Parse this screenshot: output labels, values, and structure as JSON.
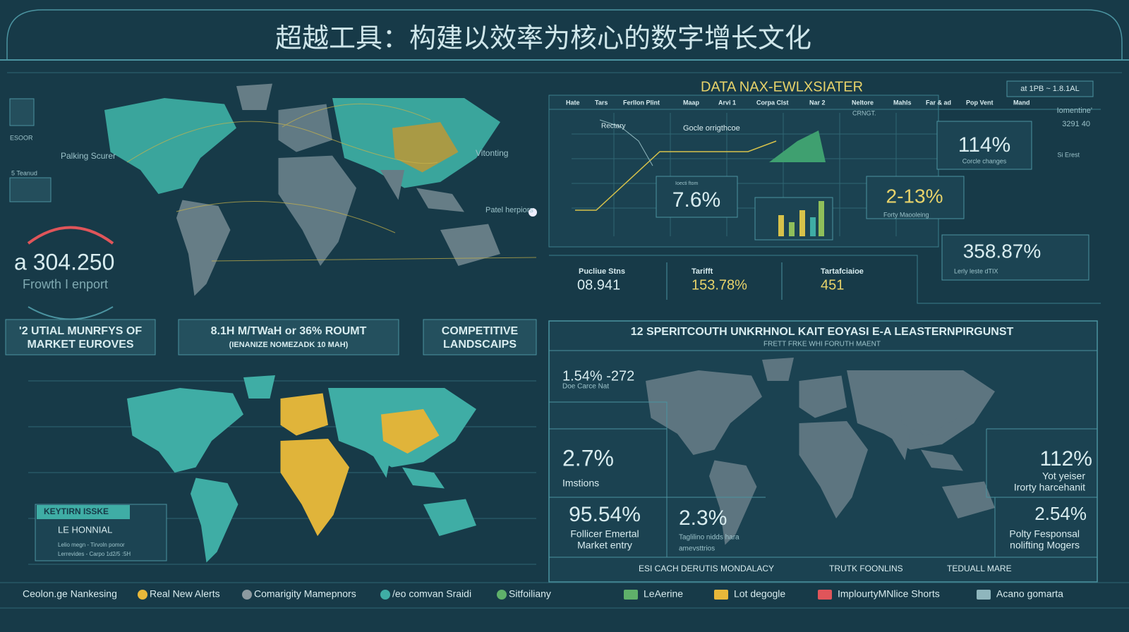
{
  "header": {
    "title": "超越工具：构建以效率为核心的数字增长文化"
  },
  "gauge": {
    "value": "a 304.250",
    "caption": "Frowth I enport"
  },
  "sidebar": [
    "ESOOR",
    "5 Teanud"
  ],
  "map_labels": [
    "Palking Scurer",
    "Vitonting",
    "Patel herpiors"
  ],
  "buttons": [
    [
      "'2 UTIAL MUNRFYS OF",
      "MARKET EUROVES"
    ],
    [
      "8.1H M/TWaH or 36% ROUMT",
      "(IENANIZE NOMEZADK 10 MAH)"
    ],
    [
      "COMPETITIVE",
      "LANDSCAIPS"
    ]
  ],
  "dashboard": {
    "title": "DATA NAX-EWLXSIATER",
    "corner": "at 1PB ~ 1.8.1AL",
    "tabs": [
      "Hate",
      "Tars",
      "Ferllon Plint",
      "Maap",
      "Arvi 1",
      "Corpa Clst",
      "Nar 2",
      "Neltore",
      "Mahls",
      "Far & ad",
      "Pop Vent",
      "Mand"
    ],
    "notes": [
      "Rectary",
      "Gocle orrigthcoe",
      "CRNGT."
    ],
    "stats": [
      {
        "value": "7.6%",
        "label": "Ioecti ftom"
      },
      {
        "value": "2-13%",
        "label": "Forty Maooleing"
      },
      {
        "value": "114%",
        "label": "Corcle changes"
      },
      {
        "value": "358.87%",
        "label": "Lerly leste dTIX"
      }
    ],
    "side": [
      "Iomentine'",
      "3291 40",
      "Si Erest"
    ]
  },
  "metrics": [
    {
      "label": "Pucliue Stns",
      "value": "08.941"
    },
    {
      "label": "Tarifft",
      "value": "153.78%"
    },
    {
      "label": "Tartafciaioe",
      "value": "451"
    }
  ],
  "legend": {
    "title": "KEYTIRN ISSKE",
    "item": "LE HONNIAL",
    "notes": [
      "Lelio megn - Tirvoln pomor",
      "Lerrevides - Carpo 1d2/5 :5H"
    ]
  },
  "regional": {
    "title": "12 SPERITCOUTH UNKRHNOL KAIT EOYASI E-A LEASTERNPIRGUNST",
    "subtitle": "FRETT FRKE WHI FORUTH MAENT",
    "stats": [
      {
        "value": "1.54% -272",
        "label": [
          "Doe Carce Nat"
        ]
      },
      {
        "value": "2.7%",
        "label": [
          "Imstions"
        ]
      },
      {
        "value": "95.54%",
        "label": [
          "Follicer Emertal",
          "Market entry"
        ]
      },
      {
        "value": "2.3%",
        "label": [
          "Taglilino nidds hara",
          "amevsttrios"
        ]
      },
      {
        "value": "112%",
        "label": [
          "Yot yeiser",
          "Irorty harcehanit"
        ]
      },
      {
        "value": "2.54%",
        "label": [
          "Polty Fesponsal",
          "nolifting Mogers"
        ]
      }
    ],
    "ticker": [
      "ESI CACH DERUTIS MONDALACY",
      "TRUTK FOONLINS",
      "TEDUALL MARE"
    ]
  },
  "footer": {
    "left": [
      "Ceolon.ge Nankesing",
      "Real New Alerts",
      "Comarigity Mamepnors",
      "/eo comvan Sraidi",
      "Sitfoiliany"
    ],
    "right": [
      "LeAerine",
      "Lot degogle",
      "ImplourtyMNlice Shorts",
      "Acano gomarta"
    ]
  }
}
